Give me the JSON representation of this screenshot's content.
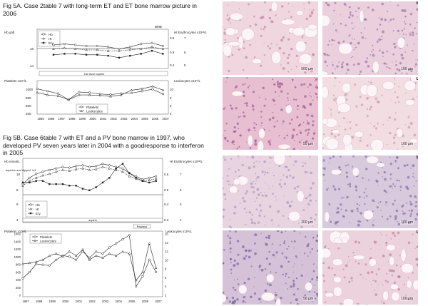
{
  "captions": {
    "fig5a": "Fig 5A. Case 2table 7 with long-term ET and ET bone marrow picture in 2006",
    "fig5b": "Fig 5B. Case 6table 7 with ET and a PV bone marrow in 1997, who developed PV seven years later in 2004 with a goodresponse to interferon in 2005"
  },
  "chart_data": [
    {
      "type": "line",
      "panel": "5A-top",
      "x": [
        1997,
        1998,
        1999,
        2000,
        2001,
        2002,
        2003,
        2004,
        2005,
        2006,
        2007
      ],
      "series": [
        {
          "name": "Hb",
          "values": [
            16.4,
            16.5,
            16.4,
            16.3,
            16.3,
            16.2,
            16.0,
            16.2,
            16.5,
            16.6,
            16.3
          ]
        },
        {
          "name": "Ht",
          "values": [
            16.0,
            16.1,
            16.0,
            15.9,
            15.9,
            15.8,
            15.8,
            15.9,
            16.0,
            16.2,
            16.0
          ]
        },
        {
          "name": "Ery",
          "values": [
            15.4,
            15.5,
            15.5,
            15.4,
            15.4,
            15.3,
            15.1,
            15.3,
            15.5,
            15.8,
            15.5
          ]
        }
      ],
      "left_axis": {
        "label": "Hb g/dl",
        "ticks": [
          "16",
          "14"
        ],
        "range": [
          14,
          18
        ]
      },
      "right_axis": {
        "label": "Ht  Erythrocytes x10¹²/L",
        "ticks": [
          "0.6",
          "0.5",
          "0.4"
        ],
        "ticks2": [
          "7",
          "6",
          "5"
        ]
      },
      "annotations": {
        "bmb": "BMB",
        "bar": "low dose aspirin"
      }
    },
    {
      "type": "line",
      "panel": "5A-bottom",
      "x": [
        1995,
        1996,
        1997,
        1998,
        1999,
        2000,
        2001,
        2002,
        2003,
        2004,
        2005,
        2006,
        2007
      ],
      "series": [
        {
          "name": "Platelets",
          "values": [
            930,
            880,
            830,
            700,
            860,
            850,
            820,
            810,
            830,
            840,
            880,
            920,
            820
          ]
        },
        {
          "name": "Leukocytes",
          "values": [
            850,
            800,
            780,
            700,
            800,
            800,
            790,
            770,
            800,
            900,
            930,
            980,
            900
          ]
        }
      ],
      "left_axis": {
        "label": "Platelets x10⁹/L",
        "ticks": [
          "1000",
          "800",
          "600",
          "400"
        ]
      },
      "right_axis": {
        "label": "Leukocytes x10⁹/L",
        "ticks": [
          "10",
          "8",
          "6",
          "4"
        ]
      },
      "x_ticks": [
        "1995",
        "1996",
        "1997",
        "1998",
        "1999",
        "2000",
        "2001",
        "2002",
        "2003",
        "2004",
        "2005",
        "2006",
        "2007"
      ]
    },
    {
      "type": "line",
      "panel": "5B-top",
      "x": [
        1997,
        1997.5,
        1998,
        1998.5,
        1999,
        1999.5,
        2000,
        2000.5,
        2001,
        2001.5,
        2002,
        2002.5,
        2003,
        2003.5,
        2004,
        2004.5,
        2005,
        2005.5,
        2006,
        2006.5,
        2007
      ],
      "series": [
        {
          "name": "Hb",
          "values": [
            8.2,
            9.0,
            9.5,
            9.8,
            10.0,
            10.2,
            10.4,
            10.3,
            10.5,
            10.6,
            10.4,
            10.5,
            10.8,
            10.6,
            10.4,
            10.2,
            9.6,
            9.2,
            8.8,
            9.0,
            9.2
          ]
        },
        {
          "name": "Ht",
          "values": [
            8.0,
            8.6,
            9.0,
            9.3,
            9.5,
            9.8,
            10.0,
            9.9,
            10.1,
            10.2,
            10.0,
            10.1,
            10.4,
            10.2,
            10.0,
            9.8,
            9.2,
            8.9,
            8.6,
            8.7,
            8.9
          ]
        },
        {
          "name": "Ery",
          "values": [
            8.4,
            8.4,
            8.6,
            8.6,
            8.2,
            8.2,
            8.2,
            8.0,
            8.0,
            7.6,
            7.4,
            7.8,
            8.4,
            9.0,
            10.2,
            10.8,
            9.6,
            9.0,
            8.6,
            8.4,
            8.6
          ]
        }
      ],
      "left_axis": {
        "label": "Hb mmol/L",
        "ticks": [
          "10",
          "8",
          "6",
          "4"
        ]
      },
      "right_axis": {
        "label": "Ht  Erythrocytes x10¹²/L",
        "ticks": [
          "0.6",
          "0.5",
          "0.4",
          "0.3"
        ],
        "ticks2": [
          "7",
          "6",
          "5",
          "4"
        ]
      },
      "annotations": {
        "start": "aspirine and dipyrid. 1/4",
        "bar": "aspirin",
        "peg": "Pegasys"
      }
    },
    {
      "type": "line",
      "panel": "5B-bottom",
      "x": [
        1997,
        1997.5,
        1998,
        1998.5,
        1999,
        1999.5,
        2000,
        2000.5,
        2001,
        2001.5,
        2002,
        2002.5,
        2003,
        2003.5,
        2004,
        2004.5,
        2005,
        2005.5,
        2006,
        2006.5,
        2007
      ],
      "series": [
        {
          "name": "Platelets",
          "values": [
            450,
            600,
            800,
            780,
            760,
            900,
            1000,
            980,
            900,
            1100,
            950,
            1100,
            1050,
            1200,
            1300,
            1400,
            1500,
            250,
            500,
            900,
            600
          ]
        },
        {
          "name": "Leukocytes",
          "values": [
            800,
            820,
            850,
            900,
            1000,
            1050,
            980,
            1100,
            1000,
            1150,
            900,
            1000,
            950,
            1050,
            1000,
            1100,
            1050,
            400,
            600,
            1300,
            700
          ]
        }
      ],
      "left_axis": {
        "label": "Platelets x10⁹/L",
        "ticks": [
          "1600",
          "1400",
          "1200",
          "1000",
          "800",
          "600",
          "400",
          "200",
          "0"
        ]
      },
      "right_axis": {
        "label": "Leukocytes x10⁹/L",
        "ticks": [
          "16",
          "14",
          "12",
          "10",
          "8",
          "6",
          "4",
          "2"
        ]
      },
      "x_ticks": [
        "1997",
        "1998",
        "1999",
        "2000",
        "2001",
        "2002",
        "2003",
        "2004",
        "2005",
        "2006",
        "2007"
      ]
    }
  ],
  "photos": [
    {
      "letter": "A",
      "scale": "500 µm",
      "bg": "#efd6df",
      "ink": "#b9708f"
    },
    {
      "letter": "B",
      "scale": "100 µm",
      "bg": "#ead0dc",
      "ink": "#8a5a9a"
    },
    {
      "letter": "C",
      "scale": "50 µm",
      "bg": "#e8bfd0",
      "ink": "#8b3f86"
    },
    {
      "letter": "D",
      "scale": "100 µm",
      "bg": "#f1dde2",
      "ink": "#c48a98"
    },
    {
      "letter": "A",
      "scale": "200 µm",
      "bg": "#e8d4e0",
      "ink": "#9c86b4"
    },
    {
      "letter": "B",
      "scale": "100 µm",
      "bg": "#d9c9dd",
      "ink": "#6f5b99"
    },
    {
      "letter": "C",
      "scale": "50 µm",
      "bg": "#d5c2d8",
      "ink": "#5b4c8e"
    },
    {
      "letter": "D",
      "scale": "100 µm",
      "bg": "#ecd2dc",
      "ink": "#b56f8f"
    }
  ]
}
